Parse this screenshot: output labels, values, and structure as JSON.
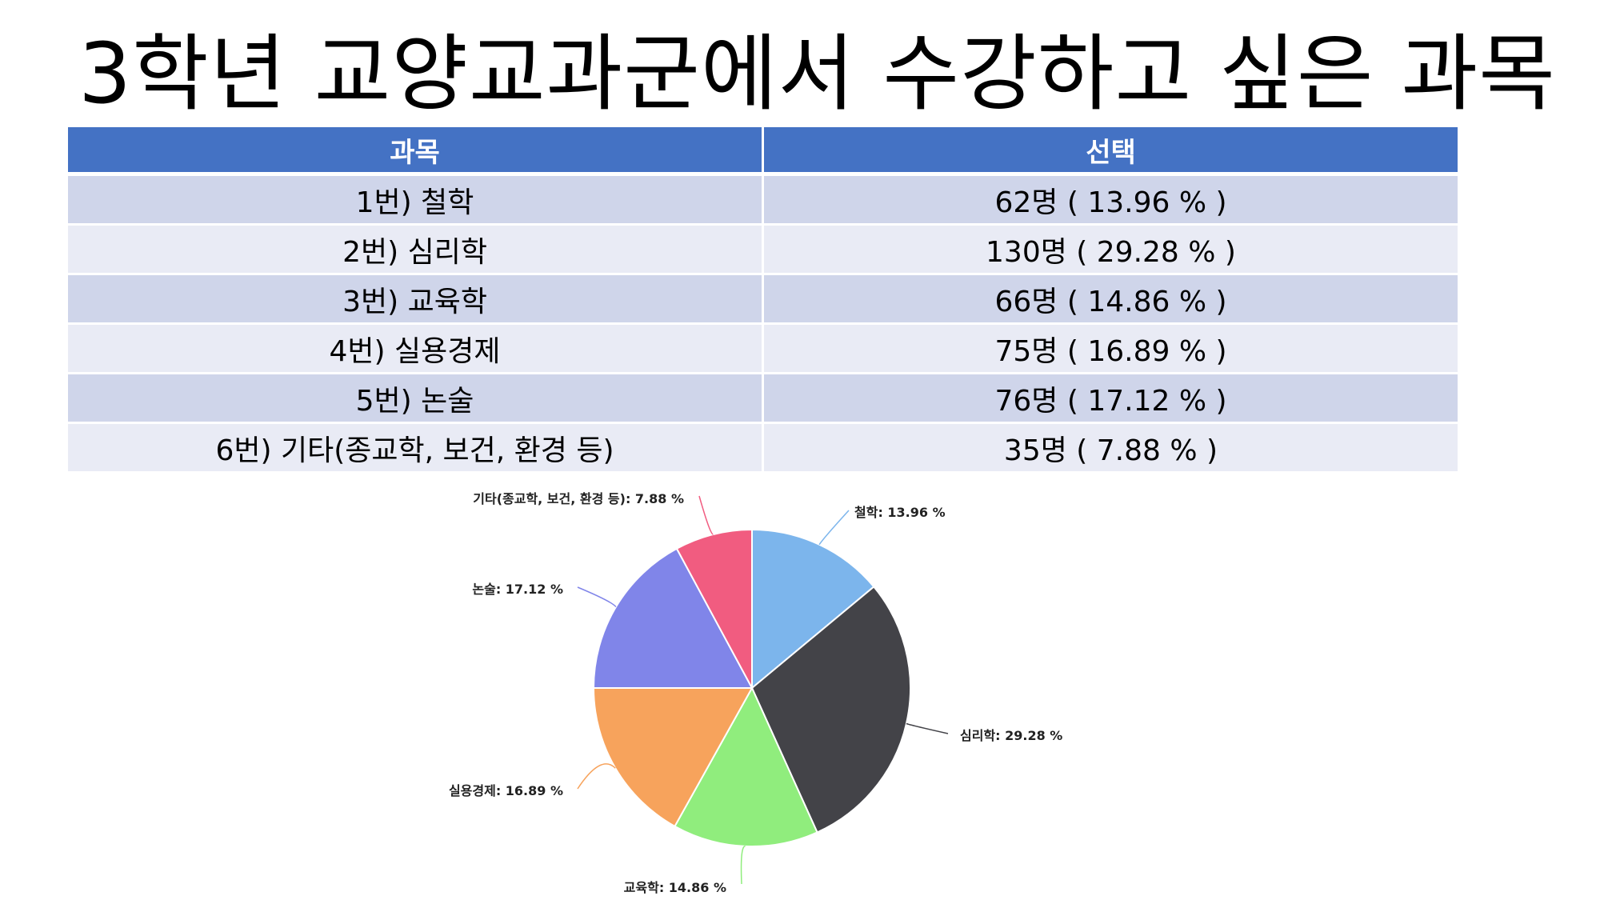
{
  "title": "3학년 교양교과군에서 수강하고 싶은 과목",
  "table": {
    "headers": [
      "과목",
      "선택"
    ],
    "rows": [
      {
        "subject": "1번) 철학",
        "choice": "62명 ( 13.96 % )"
      },
      {
        "subject": "2번) 심리학",
        "choice": "130명 ( 29.28 % )"
      },
      {
        "subject": "3번) 교육학",
        "choice": "66명 ( 14.86 % )"
      },
      {
        "subject": "4번) 실용경제",
        "choice": "75명 ( 16.89 % )"
      },
      {
        "subject": "5번) 논술",
        "choice": "76명 ( 17.12 % )"
      },
      {
        "subject": "6번) 기타(종교학, 보건, 환경 등)",
        "choice": "35명 ( 7.88 % )"
      }
    ]
  },
  "chart_data": {
    "type": "pie",
    "categories": [
      "철학",
      "심리학",
      "교육학",
      "실용경제",
      "논술",
      "기타(종교학, 보건, 환경 등)"
    ],
    "values": [
      13.96,
      29.28,
      14.86,
      16.89,
      17.12,
      7.88
    ],
    "labels": [
      "철학: 13.96 %",
      "심리학: 29.28 %",
      "교육학: 14.86 %",
      "실용경제: 16.89 %",
      "논술: 17.12 %",
      "기타(종교학, 보건, 환경 등): 7.88 %"
    ],
    "colors": [
      "#7cb5ec",
      "#434348",
      "#90ed7d",
      "#f7a35c",
      "#8085e9",
      "#f15c80"
    ],
    "start": "top, clockwise",
    "legend": "none"
  }
}
